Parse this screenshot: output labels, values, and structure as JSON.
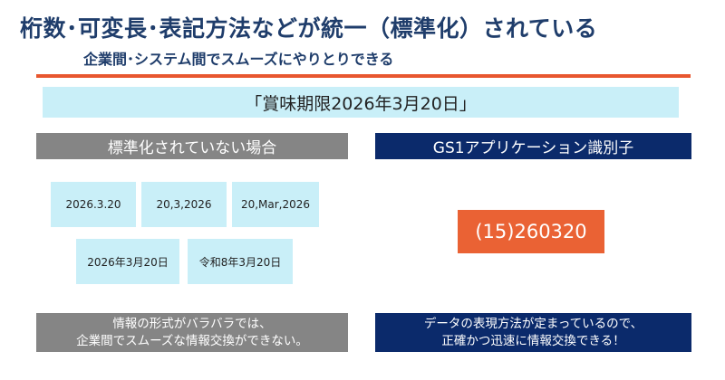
{
  "title": "桁数･可変長･表記方法などが統一（標準化）されている",
  "subtitle": "企業間･システム間でスムーズにやりとりできる",
  "banner": "「賞味期限2026年3月20日」",
  "left": {
    "header": "標準化されていない場合",
    "formats": [
      "2026.3.20",
      "20,3,2026",
      "20,Mar,2026",
      "2026年3月20日",
      "令和8年3月20日"
    ],
    "footer": [
      "情報の形式がバラバラでは、",
      "企業間でスムーズな情報交換ができない。"
    ]
  },
  "right": {
    "header": "GS1アプリケーション識別子",
    "code": "(15)260320",
    "footer": [
      "データの表現方法が定まっているので、",
      "正確かつ迅速に情報交換できる！"
    ]
  },
  "colors": {
    "title": "#1f3d6b",
    "accent_rule": "#e8572f",
    "light_box": "#c9eff8",
    "gray": "#858585",
    "navy": "#0b2a6b",
    "orange_box": "#ea6234"
  }
}
